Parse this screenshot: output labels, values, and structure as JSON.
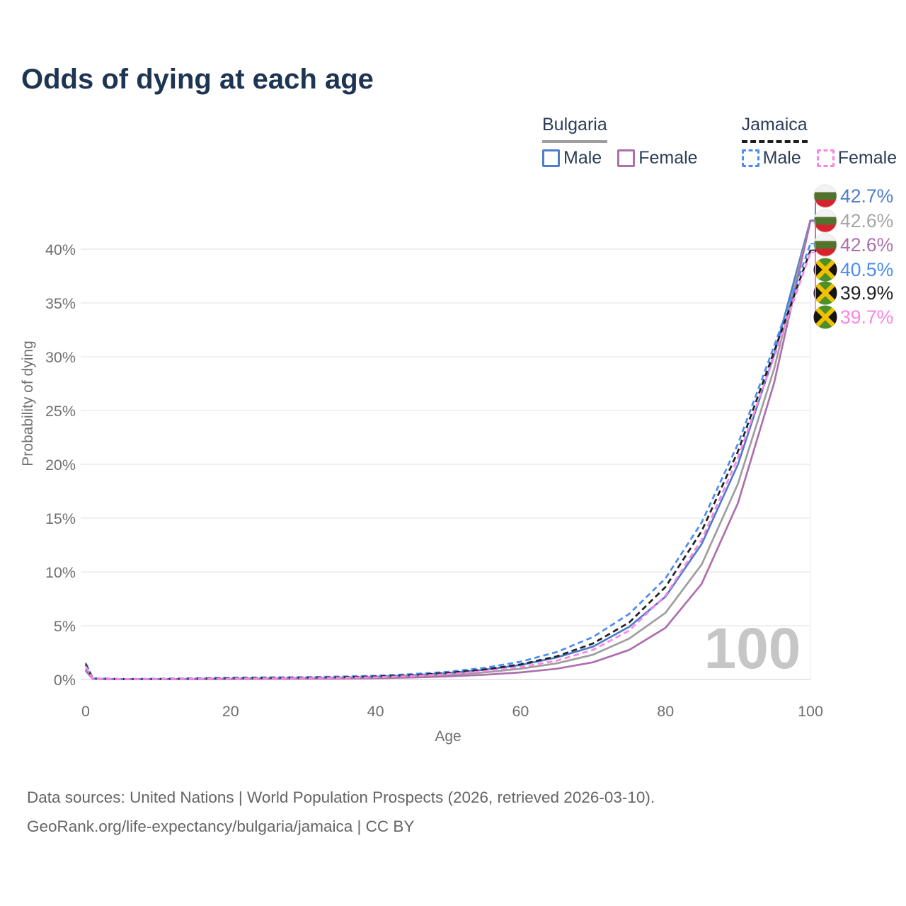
{
  "title": "Odds of dying at each age",
  "legend": {
    "groups": [
      {
        "name": "Bulgaria",
        "line_style": "solid",
        "underline_color": "#9e9e9e",
        "items": [
          {
            "label": "Male",
            "color": "#4e7dc9",
            "dashed": false
          },
          {
            "label": "Female",
            "color": "#ad6fad",
            "dashed": false
          }
        ]
      },
      {
        "name": "Jamaica",
        "line_style": "dashed",
        "underline_color": "#1f1f1f",
        "items": [
          {
            "label": "Male",
            "color": "#4b8cf5",
            "dashed": true
          },
          {
            "label": "Female",
            "color": "#fa85e4",
            "dashed": true
          }
        ]
      }
    ]
  },
  "watermark": "100",
  "footer": {
    "line1": "Data sources: United Nations | World Population Prospects (2026, retrieved 2026-03-10).",
    "line2": "GeoRank.org/life-expectancy/bulgaria/jamaica | CC BY"
  },
  "chart_data": {
    "type": "line",
    "title": "Odds of dying at each age",
    "xlabel": "Age",
    "ylabel": "Probability of dying",
    "xlim": [
      0,
      100
    ],
    "ylim_percent": [
      0,
      44.5
    ],
    "grid": "horizontal",
    "x_ticks": [
      {
        "value": 0,
        "label": "0"
      },
      {
        "value": 20,
        "label": "20"
      },
      {
        "value": 40,
        "label": "40"
      },
      {
        "value": 60,
        "label": "60"
      },
      {
        "value": 80,
        "label": "80"
      },
      {
        "value": 100,
        "label": "100"
      }
    ],
    "y_ticks": [
      {
        "value": 0,
        "label": "0%"
      },
      {
        "value": 5,
        "label": "5%"
      },
      {
        "value": 10,
        "label": "10%"
      },
      {
        "value": 15,
        "label": "15%"
      },
      {
        "value": 20,
        "label": "20%"
      },
      {
        "value": 25,
        "label": "25%"
      },
      {
        "value": 30,
        "label": "30%"
      },
      {
        "value": 35,
        "label": "35%"
      },
      {
        "value": 40,
        "label": "40%"
      }
    ],
    "ages": [
      0,
      1,
      5,
      10,
      15,
      20,
      25,
      30,
      35,
      40,
      45,
      50,
      55,
      60,
      65,
      70,
      75,
      80,
      85,
      90,
      95,
      100
    ],
    "series": [
      {
        "name": "Bulgaria Male",
        "country": "Bulgaria",
        "flag": "bulgaria",
        "color": "#4e7dc9",
        "dashed": false,
        "end_label": "42.7%",
        "end_label_color": "#4e7dc9",
        "values_percent": [
          0.95,
          0.06,
          0.03,
          0.03,
          0.05,
          0.08,
          0.1,
          0.13,
          0.17,
          0.25,
          0.38,
          0.6,
          0.9,
          1.35,
          2.05,
          3.05,
          4.9,
          7.7,
          12.6,
          20.0,
          30.2,
          42.7
        ]
      },
      {
        "name": "Bulgaria Both sexes",
        "country": "Bulgaria",
        "flag": "bulgaria",
        "color": "#9e9e9e",
        "dashed": false,
        "end_label": "42.6%",
        "end_label_color": "#a6a6a6",
        "values_percent": [
          0.88,
          0.05,
          0.03,
          0.03,
          0.04,
          0.06,
          0.08,
          0.1,
          0.13,
          0.18,
          0.28,
          0.44,
          0.66,
          1.0,
          1.5,
          2.3,
          3.8,
          6.2,
          10.7,
          18.2,
          28.9,
          42.6
        ]
      },
      {
        "name": "Bulgaria Female",
        "country": "Bulgaria",
        "flag": "bulgaria",
        "color": "#ad6fad",
        "dashed": false,
        "end_label": "42.6%",
        "end_label_color": "#ad6fad",
        "values_percent": [
          0.8,
          0.05,
          0.02,
          0.02,
          0.03,
          0.04,
          0.05,
          0.07,
          0.09,
          0.12,
          0.19,
          0.29,
          0.44,
          0.66,
          1.0,
          1.6,
          2.75,
          4.8,
          8.9,
          16.4,
          27.6,
          42.6
        ]
      },
      {
        "name": "Jamaica Male",
        "country": "Jamaica",
        "flag": "jamaica",
        "color": "#4b8cf5",
        "dashed": true,
        "end_label": "40.5%",
        "end_label_color": "#4b8cf5",
        "values_percent": [
          1.55,
          0.1,
          0.05,
          0.06,
          0.1,
          0.16,
          0.19,
          0.22,
          0.27,
          0.35,
          0.5,
          0.72,
          1.08,
          1.65,
          2.55,
          3.95,
          6.1,
          9.4,
          14.6,
          21.9,
          31.0,
          40.5
        ]
      },
      {
        "name": "Jamaica Both sexes",
        "country": "Jamaica",
        "flag": "jamaica",
        "color": "#212121",
        "dashed": true,
        "end_label": "39.9%",
        "end_label_color": "#212121",
        "values_percent": [
          1.4,
          0.09,
          0.04,
          0.05,
          0.08,
          0.12,
          0.15,
          0.17,
          0.21,
          0.28,
          0.41,
          0.61,
          0.92,
          1.4,
          2.15,
          3.35,
          5.3,
          8.6,
          13.8,
          21.2,
          30.5,
          39.9
        ]
      },
      {
        "name": "Jamaica Female",
        "country": "Jamaica",
        "flag": "jamaica",
        "color": "#fa85e4",
        "dashed": true,
        "end_label": "39.7%",
        "end_label_color": "#fa85e4",
        "values_percent": [
          1.25,
          0.08,
          0.04,
          0.04,
          0.06,
          0.08,
          0.1,
          0.13,
          0.16,
          0.21,
          0.32,
          0.5,
          0.77,
          1.15,
          1.75,
          2.75,
          4.55,
          7.8,
          13.0,
          20.6,
          30.0,
          39.7
        ]
      }
    ],
    "flag_colors": {
      "bulgaria": {
        "white": "#f2f2f2",
        "green": "#52732d",
        "red": "#d8232f"
      },
      "jamaica": {
        "green": "#4e8f27",
        "gold": "#efc100",
        "black": "#151515"
      }
    },
    "colors": {
      "grid": "#ececec",
      "baseline": "#dddddd",
      "axis_text": "#6f6f6f",
      "watermark": "#c6c6c6"
    },
    "legend_position": "top-right",
    "annotation_watermark": "100"
  }
}
